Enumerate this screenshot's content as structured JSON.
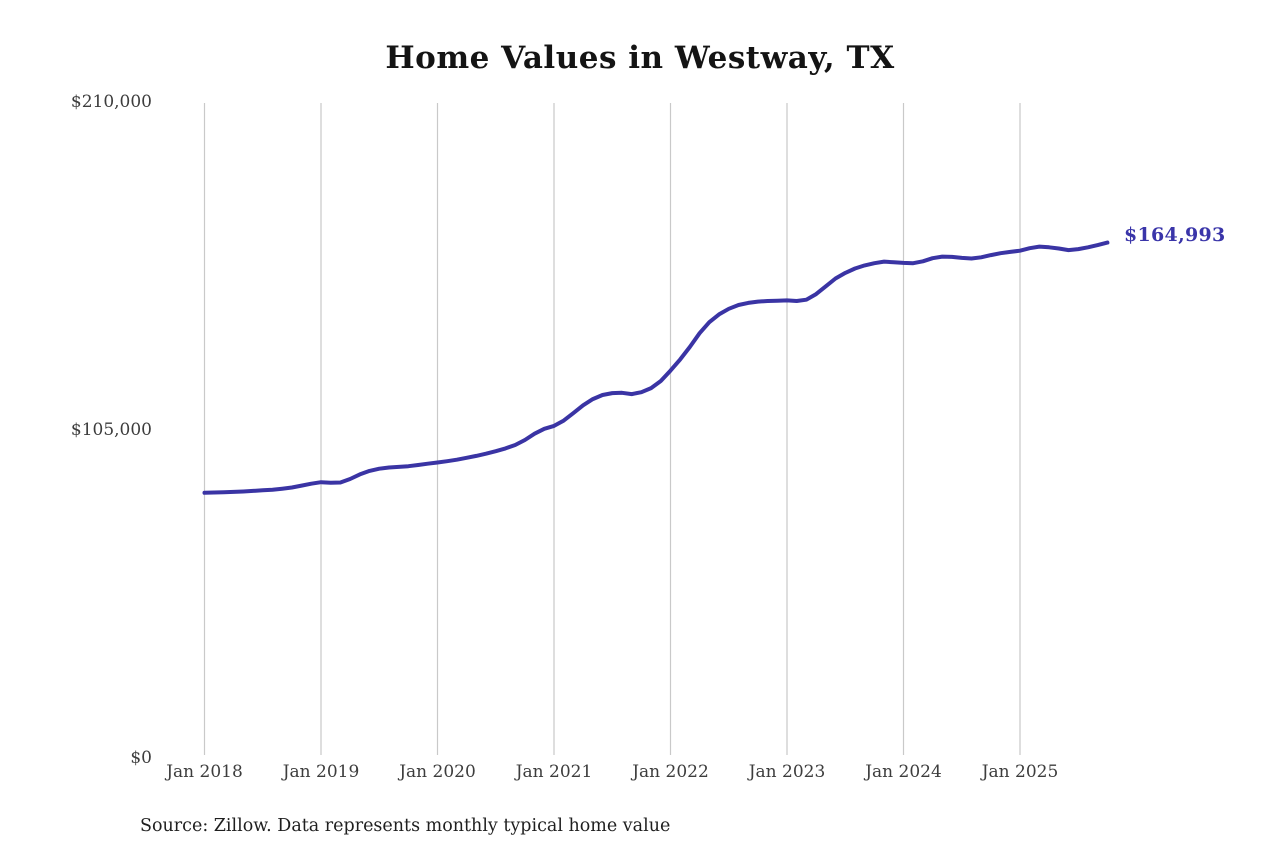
{
  "chart_data": {
    "type": "line",
    "title": "Home Values in Westway, TX",
    "series_name": "Typical home value",
    "x_start": "Jan 2018",
    "x_end": "Oct 2025",
    "x_tick_labels": [
      "Jan 2018",
      "Jan 2019",
      "Jan 2020",
      "Jan 2021",
      "Jan 2022",
      "Jan 2023",
      "Jan 2024",
      "Jan 2025"
    ],
    "y_tick_labels": [
      "$210,000",
      "$105,000",
      "$0"
    ],
    "ylim": [
      0,
      210000
    ],
    "grid": "vertical-only",
    "legend": "none",
    "end_annotation": "$164,993",
    "monthly_values": [
      84900,
      85000,
      85100,
      85200,
      85300,
      85500,
      85700,
      85900,
      86200,
      86600,
      87200,
      87800,
      88300,
      88100,
      88200,
      89300,
      90800,
      91900,
      92600,
      93000,
      93200,
      93400,
      93800,
      94200,
      94600,
      95000,
      95500,
      96100,
      96700,
      97400,
      98200,
      99100,
      100200,
      101800,
      103800,
      105400,
      106300,
      108000,
      110400,
      112900,
      114900,
      116200,
      116800,
      116900,
      116500,
      117100,
      118400,
      120700,
      124000,
      127600,
      131600,
      136000,
      139500,
      142000,
      143800,
      145000,
      145700,
      146100,
      146300,
      146400,
      146500,
      146300,
      146700,
      148500,
      151000,
      153500,
      155300,
      156700,
      157700,
      158400,
      158900,
      158700,
      158500,
      158400,
      159000,
      160000,
      160500,
      160400,
      160100,
      159900,
      160300,
      161000,
      161600,
      162000,
      162400,
      163200,
      163700,
      163500,
      163100,
      162600,
      162900,
      163500,
      164200,
      164993
    ],
    "colors": {
      "line": "#3a34a4",
      "annotation": "#3a35a9",
      "gridline": "#c9c9c9",
      "axis_text": "#3d3d3d",
      "title_text": "#141414"
    }
  },
  "source_note": "Source: Zillow. Data represents monthly typical home value"
}
